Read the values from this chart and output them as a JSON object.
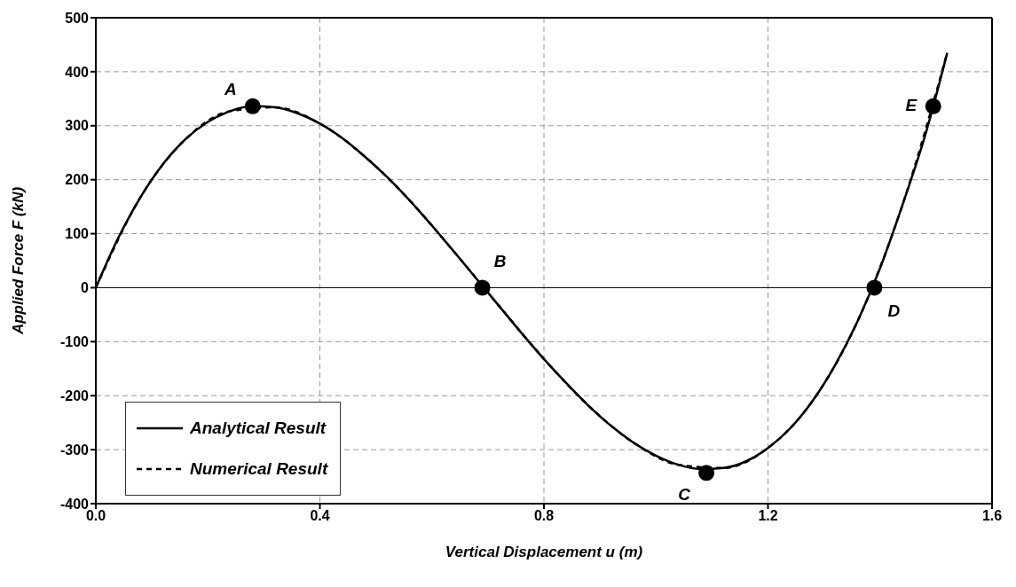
{
  "chart_data": {
    "type": "line",
    "xlabel": "Vertical Displacement u (m)",
    "ylabel": "Applied Force F (kN)",
    "xlim": [
      0,
      1.6
    ],
    "xticks": [
      {
        "value": 0,
        "label": "0.0"
      },
      0.4,
      0.8,
      1.2,
      1.6
    ],
    "ylim": [
      -400,
      500
    ],
    "yticks": [
      -400,
      -300,
      -200,
      -100,
      0,
      100,
      200,
      300,
      400,
      500
    ],
    "grid": true,
    "legend": "bottom left",
    "marker": "none",
    "ref_lines": [
      {
        "axis": "y",
        "value": 0,
        "color": "#000000",
        "line_style": "solid"
      }
    ],
    "series": [
      {
        "name": "Analytical Result",
        "color": "#000000",
        "line_style": "solid",
        "x": [
          0,
          0.04,
          0.08,
          0.12,
          0.16,
          0.2,
          0.24,
          0.28,
          0.32,
          0.36,
          0.4,
          0.44,
          0.48,
          0.52,
          0.56,
          0.6,
          0.64,
          0.68,
          0.72,
          0.76,
          0.8,
          0.84,
          0.88,
          0.92,
          0.96,
          1.0,
          1.04,
          1.08,
          1.12,
          1.16,
          1.2,
          1.24,
          1.28,
          1.32,
          1.36,
          1.4,
          1.44,
          1.48,
          1.52
        ],
        "values": [
          0,
          92,
          168,
          229,
          275,
          307,
          327,
          336,
          334,
          323,
          304,
          277,
          243,
          205,
          162,
          115,
          66,
          16,
          -34,
          -84,
          -132,
          -177,
          -219,
          -256,
          -287,
          -311,
          -328,
          -336,
          -334,
          -322,
          -297,
          -260,
          -209,
          -143,
          -62,
          36,
          153,
          280,
          435
        ]
      },
      {
        "name": "Numerical Result",
        "color": "#000000",
        "line_style": "dashed",
        "x": [
          0,
          0.08,
          0.16,
          0.24,
          0.32,
          0.4,
          0.48,
          0.56,
          0.64,
          0.72,
          0.8,
          0.88,
          0.96,
          1.04,
          1.12,
          1.2,
          1.28,
          1.36,
          1.44,
          1.52
        ],
        "values": [
          0,
          168,
          275,
          327,
          334,
          304,
          243,
          162,
          66,
          -34,
          -132,
          -219,
          -287,
          -328,
          -334,
          -297,
          -209,
          -62,
          153,
          435
        ]
      },
      {
        "type": "scatter",
        "color": "#000000",
        "marker": "circle",
        "x": [
          0.28,
          0.69,
          1.09,
          1.39,
          1.495
        ],
        "values": [
          336,
          0,
          -343,
          0,
          336
        ]
      }
    ],
    "annotations": [
      {
        "text": "A",
        "x": 0.28,
        "y": 336
      },
      {
        "text": "B",
        "x": 0.69,
        "y": 0
      },
      {
        "text": "C",
        "x": 1.09,
        "y": -343
      },
      {
        "text": "D",
        "x": 1.39,
        "y": 0
      },
      {
        "text": "E",
        "x": 1.495,
        "y": 336
      }
    ]
  }
}
